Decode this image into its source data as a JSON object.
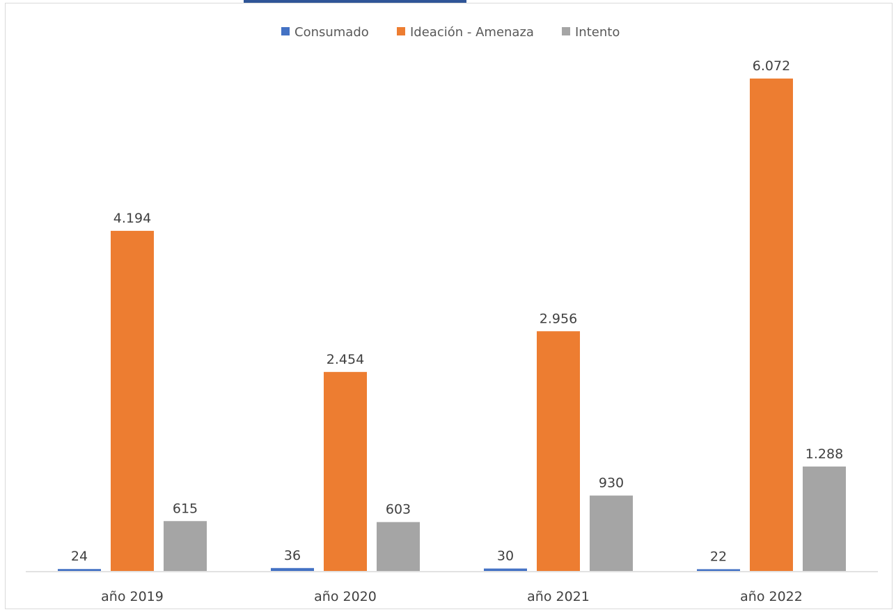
{
  "chart_data": {
    "type": "bar",
    "title": "",
    "xlabel": "",
    "ylabel": "",
    "categories": [
      "año 2019",
      "año 2020",
      "año 2021",
      "año 2022"
    ],
    "series": [
      {
        "name": "Consumado",
        "color": "#4472c4",
        "values": [
          24,
          36,
          30,
          22
        ],
        "labels": [
          "24",
          "36",
          "30",
          "22"
        ]
      },
      {
        "name": "Ideación - Amenaza",
        "color": "#ed7d31",
        "values": [
          4194,
          2454,
          2956,
          6072
        ],
        "labels": [
          "4.194",
          "2.454",
          "2.956",
          "6.072"
        ]
      },
      {
        "name": "Intento",
        "color": "#a5a5a5",
        "values": [
          615,
          603,
          930,
          1288
        ],
        "labels": [
          "615",
          "603",
          "930",
          "1.288"
        ]
      }
    ],
    "ylim": [
      0,
      6500
    ],
    "grid": false,
    "legend_position": "top"
  }
}
